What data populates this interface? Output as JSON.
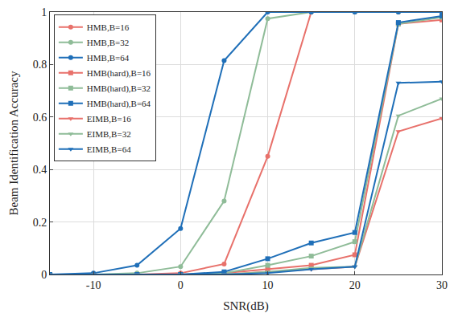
{
  "chart_data": {
    "type": "line",
    "x_label": "SNR(dB)",
    "y_label": "Beam Identification Accuracy",
    "x": [
      -15,
      -10,
      -5,
      0,
      5,
      10,
      15,
      20,
      25,
      30
    ],
    "xlim": [
      -15,
      30
    ],
    "xticks": [
      -10,
      0,
      10,
      20,
      30
    ],
    "ylim": [
      0,
      1
    ],
    "yticks": [
      0,
      0.2,
      0.4,
      0.6,
      0.8,
      1
    ],
    "grid": true,
    "legend": "top-left",
    "series": [
      {
        "name": "HMB,B=16",
        "color": "#e8716b",
        "marker": "circle",
        "line_style": "solid",
        "values": [
          0,
          0,
          0,
          0.005,
          0.04,
          0.45,
          1,
          1,
          1,
          1
        ]
      },
      {
        "name": "HMB,B=32",
        "color": "#8fbc98",
        "marker": "circle",
        "line_style": "solid",
        "values": [
          0,
          0,
          0.005,
          0.03,
          0.28,
          0.975,
          1,
          1,
          1,
          1
        ]
      },
      {
        "name": "HMB,B=64",
        "color": "#1f6fb8",
        "marker": "circle",
        "line_style": "solid",
        "values": [
          0,
          0.005,
          0.035,
          0.175,
          0.815,
          1,
          1,
          1,
          1,
          1
        ]
      },
      {
        "name": "HMB(hard),B=16",
        "color": "#e8716b",
        "marker": "square",
        "line_style": "solid",
        "values": [
          0,
          0,
          0,
          0,
          0.005,
          0.02,
          0.035,
          0.075,
          0.955,
          0.97
        ]
      },
      {
        "name": "HMB(hard),B=32",
        "color": "#8fbc98",
        "marker": "square",
        "line_style": "solid",
        "values": [
          0,
          0,
          0,
          0,
          0.005,
          0.035,
          0.07,
          0.125,
          0.955,
          0.98
        ]
      },
      {
        "name": "HMB(hard),B=64",
        "color": "#1f6fb8",
        "marker": "square",
        "line_style": "solid",
        "values": [
          0,
          0,
          0,
          0,
          0.01,
          0.06,
          0.12,
          0.16,
          0.96,
          0.985
        ]
      },
      {
        "name": "EIMB,B=16",
        "color": "#e8716b",
        "marker": "triangle-down",
        "line_style": "solid",
        "values": [
          0,
          0,
          0,
          0,
          0,
          0.01,
          0.02,
          0.03,
          0.545,
          0.595
        ]
      },
      {
        "name": "EIMB,B=32",
        "color": "#8fbc98",
        "marker": "triangle-down",
        "line_style": "solid",
        "values": [
          0,
          0,
          0,
          0,
          0,
          0.01,
          0.025,
          0.03,
          0.605,
          0.67
        ]
      },
      {
        "name": "EIMB,B=64",
        "color": "#1f6fb8",
        "marker": "triangle-down",
        "line_style": "solid",
        "values": [
          0,
          0,
          0,
          0,
          0,
          0.005,
          0.02,
          0.03,
          0.73,
          0.735
        ]
      }
    ]
  }
}
